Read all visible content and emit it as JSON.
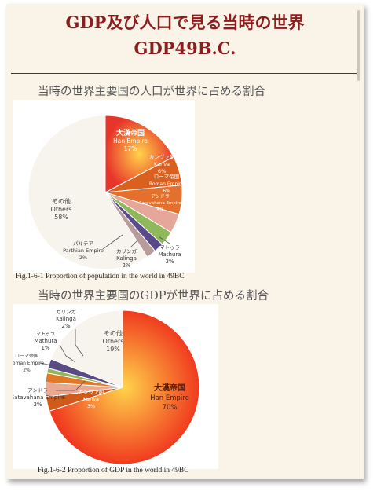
{
  "header": {
    "title": "GDP及び人口で見る当時の世界",
    "subtitle": "GDP49B.C."
  },
  "sections": [
    {
      "title": "当時の世界主要国の人口が世界に占める割合",
      "caption": "Fig.1-6-1 Proportion of population in the world in 49BC"
    },
    {
      "title": "当時の世界主要国のGDPが世界に占める割合",
      "caption": "Fig.1-6-2 Proportion of GDP in the world in 49BC"
    }
  ],
  "chart_data": [
    {
      "type": "pie",
      "title": "当時の世界主要国の人口が世界に占める割合",
      "slices": [
        {
          "jp": "大漢帝国",
          "en": "Han Empire",
          "value": 17,
          "pct": "17%",
          "color": "#e8352b"
        },
        {
          "jp": "カンヴァ朝",
          "en": "Kanva",
          "value": 6,
          "pct": "6%",
          "color": "#d9601f"
        },
        {
          "jp": "ローマ帝国",
          "en": "Roman Empire",
          "value": 6,
          "pct": "6%",
          "color": "#e3702c"
        },
        {
          "jp": "アンドラ",
          "en": "Satavahana Empire",
          "value": 4,
          "pct": "4%",
          "color": "#e6a79a"
        },
        {
          "jp": "マトゥラ",
          "en": "Mathura",
          "value": 3,
          "pct": "3%",
          "color": "#8fb85a"
        },
        {
          "jp": "カリンガ",
          "en": "Kalinga",
          "value": 2,
          "pct": "2%",
          "color": "#5a4a8a"
        },
        {
          "jp": "パルチア",
          "en": "Parthian Empire",
          "value": 2,
          "pct": "2%",
          "color": "#b79c9a"
        },
        {
          "jp": "その他",
          "en": "Others",
          "value": 58,
          "pct": "58%",
          "color": "#f7f4ee"
        }
      ]
    },
    {
      "type": "pie",
      "title": "当時の世界主要国のGDPが世界に占める割合",
      "slices": [
        {
          "jp": "大漢帝国",
          "en": "Han Empire",
          "value": 70,
          "pct": "70%",
          "color": "#f03a1f"
        },
        {
          "jp": "カンヴァ朝",
          "en": "Kanva",
          "value": 3,
          "pct": "3%",
          "color": "#d05a1a"
        },
        {
          "jp": "アンドラ",
          "en": "Satavahana Empire",
          "value": 3,
          "pct": "3%",
          "color": "#eaa88f"
        },
        {
          "jp": "ローマ帝国",
          "en": "Roman Empire",
          "value": 2,
          "pct": "2%",
          "color": "#e07a28"
        },
        {
          "jp": "マトゥラ",
          "en": "Mathura",
          "value": 1,
          "pct": "1%",
          "color": "#8fb85a"
        },
        {
          "jp": "カリンガ",
          "en": "Kalinga",
          "value": 2,
          "pct": "2%",
          "color": "#5a4a8a"
        },
        {
          "jp": "その他",
          "en": "Others",
          "value": 19,
          "pct": "19%",
          "color": "#f7f4ee"
        }
      ]
    }
  ]
}
